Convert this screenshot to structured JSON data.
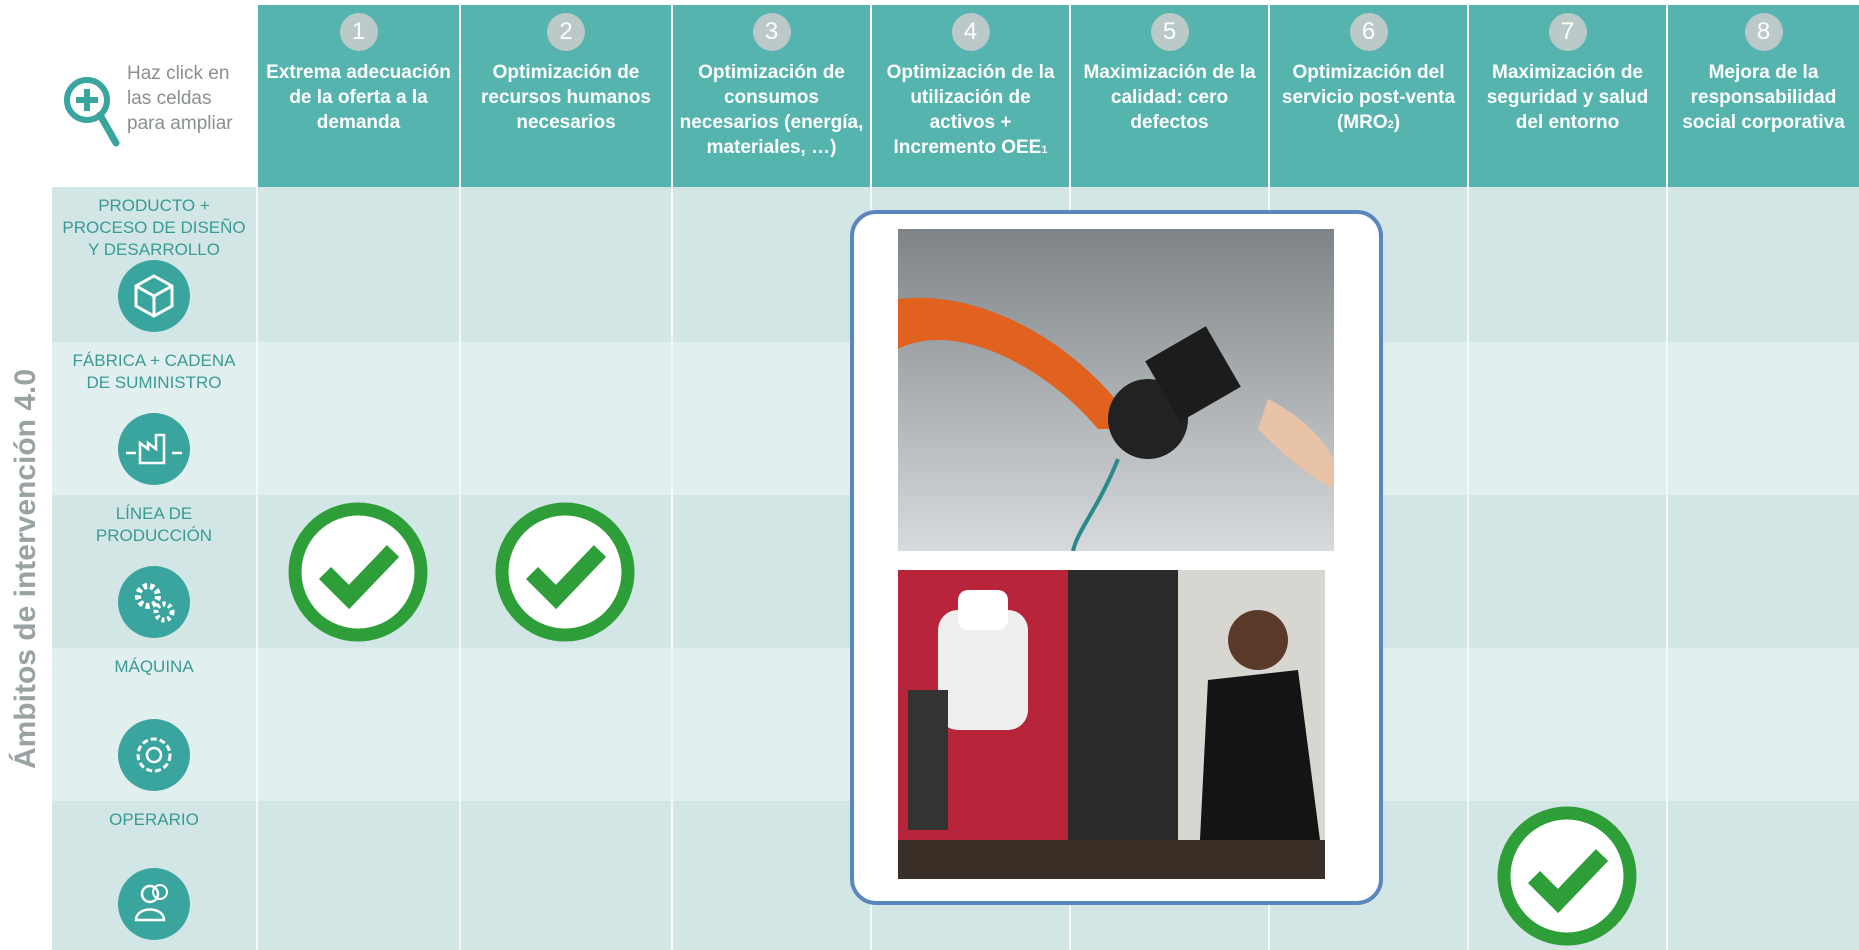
{
  "side_label": "Ámbitos de intervención 4.0",
  "hint": "Haz click en las celdas para ampliar",
  "columns": [
    {
      "number": "1",
      "title": "Extrema adecuación de la oferta a la demanda"
    },
    {
      "number": "2",
      "title": "Optimización de recursos humanos necesarios"
    },
    {
      "number": "3",
      "title": "Optimización de consumos necesarios (energía, materiales, …)"
    },
    {
      "number": "4",
      "title": "Optimización de la utilización de activos + Incremento OEE",
      "note": "1"
    },
    {
      "number": "5",
      "title": "Maximización de la calidad: cero defectos"
    },
    {
      "number": "6",
      "title": "Optimización del servicio post-venta (MRO",
      "note": "2",
      "tail": ")"
    },
    {
      "number": "7",
      "title": "Maximización de seguridad y salud del entorno"
    },
    {
      "number": "8",
      "title": "Mejora de la responsabilidad social corporativa"
    }
  ],
  "rows": [
    {
      "label": "PRODUCTO + PROCESO DE DISEÑO Y DESARROLLO",
      "icon": "box",
      "checked_columns": []
    },
    {
      "label": "FÁBRICA + CADENA DE SUMINISTRO",
      "icon": "factory",
      "checked_columns": []
    },
    {
      "label": "LÍNEA DE PRODUCCIÓN",
      "icon": "gears",
      "checked_columns": [
        0,
        1
      ]
    },
    {
      "label": "MÁQUINA",
      "icon": "gear",
      "checked_columns": []
    },
    {
      "label": "OPERARIO",
      "icon": "people",
      "checked_columns": [
        6
      ]
    }
  ]
}
